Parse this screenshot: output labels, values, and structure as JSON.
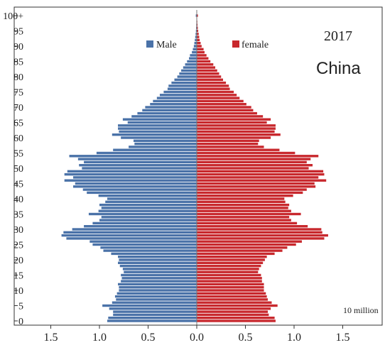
{
  "chart_data": {
    "type": "bar",
    "orientation": "horizontal",
    "subtype": "population-pyramid",
    "annotations": {
      "year": "2017",
      "country": "China"
    },
    "x_unit_label": "10 million",
    "xlim": [
      -1.5,
      1.5
    ],
    "x_ticks": [
      -1.5,
      -1.0,
      -0.5,
      0.0,
      0.5,
      1.0,
      1.5
    ],
    "x_tick_labels": [
      "1.5",
      "1.0",
      "0.5",
      "0.0",
      "0.5",
      "1.0",
      "1.5"
    ],
    "y_tick_labels": [
      "0",
      "5",
      "10",
      "15",
      "20",
      "25",
      "30",
      "35",
      "40",
      "45",
      "50",
      "55",
      "60",
      "65",
      "70",
      "75",
      "80",
      "85",
      "90",
      "95",
      "100+"
    ],
    "legend": {
      "placement": "top-center",
      "entries": [
        "Male",
        "female"
      ]
    },
    "grid": false,
    "ages": [
      0,
      1,
      2,
      3,
      4,
      5,
      6,
      7,
      8,
      9,
      10,
      11,
      12,
      13,
      14,
      15,
      16,
      17,
      18,
      19,
      20,
      21,
      22,
      23,
      24,
      25,
      26,
      27,
      28,
      29,
      30,
      31,
      32,
      33,
      34,
      35,
      36,
      37,
      38,
      39,
      40,
      41,
      42,
      43,
      44,
      45,
      46,
      47,
      48,
      49,
      50,
      51,
      52,
      53,
      54,
      55,
      56,
      57,
      58,
      59,
      60,
      61,
      62,
      63,
      64,
      65,
      66,
      67,
      68,
      69,
      70,
      71,
      72,
      73,
      74,
      75,
      76,
      77,
      78,
      79,
      80,
      81,
      82,
      83,
      84,
      85,
      86,
      87,
      88,
      89,
      90,
      91,
      92,
      93,
      94,
      95,
      96,
      97,
      98,
      99,
      100
    ],
    "series": [
      {
        "name": "Male",
        "color": "#4a72a8",
        "values": [
          0.92,
          0.91,
          0.86,
          0.86,
          0.9,
          0.97,
          0.87,
          0.83,
          0.84,
          0.82,
          0.8,
          0.8,
          0.81,
          0.78,
          0.77,
          0.78,
          0.75,
          0.76,
          0.79,
          0.81,
          0.8,
          0.81,
          0.88,
          0.96,
          0.99,
          1.07,
          1.1,
          1.34,
          1.39,
          1.37,
          1.28,
          1.16,
          1.07,
          1.0,
          0.98,
          1.11,
          1.01,
          0.98,
          1.0,
          0.94,
          0.92,
          1.01,
          1.13,
          1.17,
          1.27,
          1.25,
          1.36,
          1.27,
          1.36,
          1.33,
          1.18,
          1.21,
          1.16,
          1.22,
          1.31,
          1.03,
          0.86,
          0.7,
          0.64,
          0.65,
          0.78,
          0.87,
          0.8,
          0.81,
          0.81,
          0.71,
          0.76,
          0.67,
          0.61,
          0.56,
          0.53,
          0.48,
          0.45,
          0.41,
          0.38,
          0.34,
          0.3,
          0.29,
          0.26,
          0.23,
          0.2,
          0.18,
          0.16,
          0.14,
          0.12,
          0.1,
          0.08,
          0.07,
          0.05,
          0.04,
          0.03,
          0.025,
          0.02,
          0.016,
          0.012,
          0.009,
          0.007,
          0.005,
          0.004,
          0.003,
          0.01
        ]
      },
      {
        "name": "female",
        "color": "#c8282d",
        "values": [
          0.81,
          0.8,
          0.74,
          0.73,
          0.76,
          0.83,
          0.77,
          0.73,
          0.72,
          0.71,
          0.69,
          0.69,
          0.69,
          0.67,
          0.67,
          0.66,
          0.63,
          0.64,
          0.66,
          0.68,
          0.7,
          0.72,
          0.8,
          0.88,
          0.93,
          1.02,
          1.08,
          1.31,
          1.35,
          1.29,
          1.28,
          1.14,
          1.03,
          0.97,
          0.95,
          1.07,
          0.97,
          0.94,
          0.95,
          0.91,
          0.9,
          0.99,
          1.09,
          1.13,
          1.22,
          1.21,
          1.33,
          1.25,
          1.31,
          1.3,
          1.15,
          1.19,
          1.13,
          1.17,
          1.25,
          1.01,
          0.85,
          0.69,
          0.63,
          0.64,
          0.76,
          0.86,
          0.8,
          0.81,
          0.81,
          0.72,
          0.76,
          0.68,
          0.62,
          0.58,
          0.56,
          0.51,
          0.48,
          0.44,
          0.41,
          0.38,
          0.34,
          0.33,
          0.3,
          0.27,
          0.25,
          0.23,
          0.21,
          0.19,
          0.17,
          0.14,
          0.12,
          0.1,
          0.08,
          0.07,
          0.05,
          0.04,
          0.03,
          0.025,
          0.02,
          0.015,
          0.011,
          0.008,
          0.006,
          0.004,
          0.012
        ]
      }
    ]
  }
}
